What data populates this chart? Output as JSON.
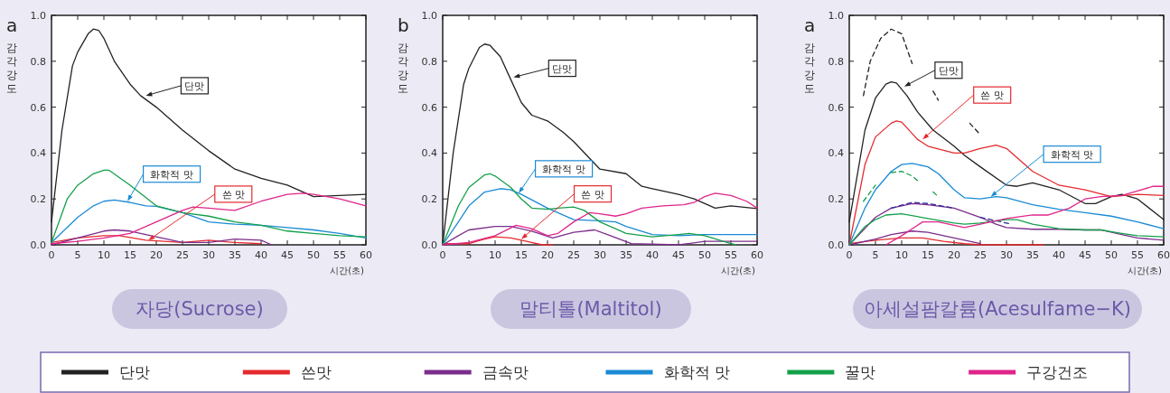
{
  "chart_data": [
    {
      "type": "line",
      "title": "자당(Sucrose)",
      "xlabel": "시간(초)",
      "ylabel": "감각강도",
      "xlim": [
        0,
        60
      ],
      "ylim": [
        0,
        1
      ],
      "xticks": [
        0,
        5,
        10,
        15,
        20,
        25,
        30,
        35,
        40,
        45,
        50,
        55,
        60
      ],
      "yticks": [
        {
          "value": 0,
          "label": "0.0"
        },
        {
          "value": 0.2,
          "label": "0.2"
        },
        {
          "value": 0.4,
          "label": "0.4"
        },
        {
          "value": 0.6,
          "label": "0.6"
        },
        {
          "value": 0.8,
          "label": "0.8"
        },
        {
          "value": 1,
          "label": "1.0"
        }
      ],
      "legend": "bottom",
      "grid": false,
      "annotations": [
        "a",
        {
          "text": "단맛",
          "x": 18,
          "y": 0.65
        },
        {
          "text": "화학적 맛",
          "x": 14.5,
          "y": 0.19
        },
        {
          "text": "쓴 맛",
          "x": 18.5,
          "y": 0.02
        }
      ],
      "series": [
        {
          "name": "단맛",
          "color": "#222222",
          "x": [
            0,
            2,
            4,
            5,
            7,
            8,
            9,
            10,
            12,
            15,
            17,
            20,
            25,
            30,
            35,
            40,
            45,
            50,
            55,
            60
          ],
          "values": [
            0.1,
            0.5,
            0.78,
            0.84,
            0.92,
            0.94,
            0.935,
            0.9,
            0.8,
            0.7,
            0.65,
            0.6,
            0.5,
            0.41,
            0.33,
            0.29,
            0.26,
            0.21,
            0.215,
            0.22
          ]
        },
        {
          "name": "쓴맛",
          "color": "#e52a2e",
          "x": [
            0,
            5,
            10,
            13,
            18,
            25,
            30,
            35,
            40
          ],
          "values": [
            0.01,
            0.03,
            0.04,
            0.04,
            0.02,
            0.01,
            0.02,
            0.01,
            0.005
          ]
        },
        {
          "name": "금속맛",
          "color": "#7b2d8b",
          "x": [
            0,
            5,
            10,
            12,
            15,
            20,
            25,
            30,
            35,
            40,
            42
          ],
          "values": [
            0,
            0.03,
            0.06,
            0.065,
            0.06,
            0.035,
            0.01,
            0.01,
            0.025,
            0.02,
            0
          ]
        },
        {
          "name": "화학적 맛",
          "color": "#1a8ad4",
          "x": [
            0,
            5,
            8,
            10,
            12,
            15,
            18,
            20,
            25,
            30,
            35,
            40,
            45,
            50,
            55,
            60
          ],
          "values": [
            0.01,
            0.12,
            0.17,
            0.19,
            0.195,
            0.185,
            0.17,
            0.168,
            0.14,
            0.1,
            0.09,
            0.085,
            0.075,
            0.065,
            0.05,
            0.03
          ]
        },
        {
          "name": "꿀맛",
          "color": "#14a04a",
          "x": [
            0,
            3,
            5,
            8,
            10,
            11,
            15,
            20,
            25,
            30,
            35,
            40,
            45,
            50,
            55,
            60
          ],
          "values": [
            0.01,
            0.2,
            0.26,
            0.31,
            0.325,
            0.325,
            0.26,
            0.17,
            0.14,
            0.125,
            0.1,
            0.085,
            0.06,
            0.05,
            0.04,
            0.035
          ]
        },
        {
          "name": "구강건조",
          "color": "#e0258a",
          "x": [
            0,
            5,
            10,
            15,
            20,
            25,
            27,
            30,
            35,
            40,
            45,
            48,
            50,
            55,
            60
          ],
          "values": [
            0.005,
            0.015,
            0.03,
            0.05,
            0.1,
            0.15,
            0.165,
            0.16,
            0.15,
            0.19,
            0.22,
            0.225,
            0.22,
            0.2,
            0.17
          ]
        }
      ]
    },
    {
      "type": "line",
      "title": "말티톨(Maltitol)",
      "xlabel": "시간(초)",
      "ylabel": "감각강도",
      "xlim": [
        0,
        60
      ],
      "ylim": [
        0,
        1
      ],
      "xticks": [
        0,
        5,
        10,
        15,
        20,
        25,
        30,
        35,
        40,
        45,
        50,
        55,
        60
      ],
      "yticks": [
        {
          "value": 0,
          "label": "0.0"
        },
        {
          "value": 0.2,
          "label": "0.2"
        },
        {
          "value": 0.4,
          "label": "0.4"
        },
        {
          "value": 0.6,
          "label": "0.6"
        },
        {
          "value": 0.8,
          "label": "0.8"
        },
        {
          "value": 1,
          "label": "1.0"
        }
      ],
      "grid": false,
      "annotations": [
        "b",
        {
          "text": "단맛",
          "x": 13.5,
          "y": 0.73
        },
        {
          "text": "화학적 맛",
          "x": 14.5,
          "y": 0.225
        },
        {
          "text": "쓴 맛",
          "x": 15,
          "y": 0.025
        }
      ],
      "series": [
        {
          "color": "#222222",
          "x": [
            0,
            2,
            4,
            5,
            7,
            8,
            9,
            11,
            13,
            15,
            17,
            20,
            23,
            25,
            30,
            35,
            38,
            40,
            45,
            48,
            52,
            55,
            60
          ],
          "values": [
            0,
            0.4,
            0.7,
            0.77,
            0.86,
            0.875,
            0.87,
            0.82,
            0.72,
            0.62,
            0.565,
            0.54,
            0.49,
            0.45,
            0.33,
            0.31,
            0.255,
            0.245,
            0.22,
            0.2,
            0.16,
            0.17,
            0.158
          ]
        },
        {
          "color": "#e52a2e",
          "x": [
            0,
            5,
            8,
            10,
            13,
            16,
            19,
            21
          ],
          "values": [
            0.005,
            0.005,
            0.025,
            0.035,
            0.03,
            0.015,
            0,
            0
          ]
        },
        {
          "color": "#7b2d8b",
          "x": [
            0,
            3,
            5,
            10,
            13,
            17,
            21,
            25,
            29,
            32,
            36,
            45,
            50,
            60
          ],
          "values": [
            0,
            0.04,
            0.065,
            0.08,
            0.08,
            0.06,
            0.03,
            0.055,
            0.065,
            0.04,
            0.005,
            0,
            0.015,
            0.015
          ]
        },
        {
          "color": "#1a8ad4",
          "x": [
            0,
            3,
            5,
            8,
            11,
            13,
            15,
            20,
            25,
            30,
            33,
            35,
            40,
            45,
            50,
            55,
            60
          ],
          "values": [
            0,
            0.1,
            0.17,
            0.23,
            0.245,
            0.24,
            0.22,
            0.16,
            0.11,
            0.105,
            0.1,
            0.08,
            0.045,
            0.04,
            0.045,
            0.045,
            0.045
          ]
        },
        {
          "color": "#14a04a",
          "x": [
            0,
            3,
            5,
            8,
            9,
            10,
            13,
            15,
            17,
            20,
            22,
            25,
            27,
            30,
            35,
            40,
            45,
            47,
            50,
            55,
            56
          ],
          "values": [
            0,
            0.17,
            0.25,
            0.305,
            0.31,
            0.3,
            0.25,
            0.2,
            0.16,
            0.155,
            0.16,
            0.165,
            0.15,
            0.1,
            0.05,
            0.035,
            0.045,
            0.05,
            0.04,
            0.005,
            0
          ]
        },
        {
          "color": "#e0258a",
          "x": [
            0,
            5,
            10,
            14,
            17,
            20,
            22,
            25,
            28,
            30,
            33,
            35,
            38,
            42,
            46,
            48,
            50,
            52,
            55,
            58,
            60
          ],
          "values": [
            0,
            0.01,
            0.04,
            0.085,
            0.07,
            0.04,
            0.05,
            0.1,
            0.14,
            0.135,
            0.125,
            0.135,
            0.16,
            0.17,
            0.175,
            0.185,
            0.21,
            0.225,
            0.215,
            0.19,
            0.16
          ]
        }
      ]
    },
    {
      "type": "line",
      "title": "아세설팜칼륨(Acesulfame−K)",
      "xlabel": "시간(초)",
      "ylabel": "감각강도",
      "xlim": [
        0,
        60
      ],
      "ylim": [
        0,
        1
      ],
      "xticks": [
        0,
        5,
        10,
        15,
        20,
        25,
        30,
        35,
        40,
        45,
        50,
        55,
        60
      ],
      "yticks": [
        {
          "value": 0,
          "label": "0.0"
        },
        {
          "value": 0.2,
          "label": "0.2"
        },
        {
          "value": 0.4,
          "label": "0.4"
        },
        {
          "value": 0.6,
          "label": "0.6"
        },
        {
          "value": 0.8,
          "label": "0.8"
        },
        {
          "value": 1,
          "label": "1.0"
        }
      ],
      "grid": false,
      "annotations": [
        "a",
        {
          "text": "단맛",
          "x": 10.5,
          "y": 0.69
        },
        {
          "text": "쓴 맛",
          "x": 14,
          "y": 0.46
        },
        {
          "text": "화학적 맛",
          "x": 27,
          "y": 0.21
        }
      ],
      "series": [
        {
          "color": "#222222",
          "x": [
            0,
            3,
            5,
            7,
            8,
            9,
            11,
            13,
            16,
            20,
            22,
            25,
            30,
            32,
            35,
            40,
            45,
            47,
            50,
            52,
            55,
            60
          ],
          "values": [
            0.1,
            0.5,
            0.64,
            0.7,
            0.71,
            0.705,
            0.65,
            0.58,
            0.5,
            0.43,
            0.39,
            0.34,
            0.26,
            0.255,
            0.27,
            0.24,
            0.18,
            0.18,
            0.21,
            0.22,
            0.2,
            0.11
          ]
        },
        {
          "color": "#222222",
          "line_style": "dashed",
          "x": [
            2.7,
            4,
            6,
            8,
            10,
            12,
            null,
            16,
            17,
            null,
            23,
            25
          ],
          "values": [
            0.65,
            0.8,
            0.9,
            0.94,
            0.92,
            0.79,
            null,
            0.67,
            0.63,
            null,
            0.53,
            0.48
          ]
        },
        {
          "color": "#e52a2e",
          "x": [
            0,
            3,
            5,
            8,
            9,
            10,
            13,
            15,
            20,
            22,
            25,
            28,
            30,
            35,
            40,
            45,
            50,
            55,
            60
          ],
          "values": [
            0,
            0.35,
            0.47,
            0.53,
            0.54,
            0.535,
            0.46,
            0.43,
            0.4,
            0.4,
            0.42,
            0.435,
            0.42,
            0.32,
            0.26,
            0.24,
            0.21,
            0.22,
            0.215
          ]
        },
        {
          "color": "#e52a2e",
          "x": [
            0,
            5,
            10,
            14,
            18,
            22,
            25,
            37
          ],
          "values": [
            0.005,
            0.02,
            0.03,
            0.03,
            0.015,
            0.005,
            0,
            0
          ]
        },
        {
          "color": "#7b2d8b",
          "x": [
            0,
            5,
            8,
            12,
            15,
            20,
            25,
            28,
            30,
            35,
            40,
            45,
            48,
            52,
            55,
            60
          ],
          "values": [
            0,
            0.12,
            0.16,
            0.18,
            0.175,
            0.16,
            0.12,
            0.09,
            0.075,
            0.068,
            0.068,
            0.065,
            0.065,
            0.045,
            0.03,
            0.02
          ]
        },
        {
          "color": "#7b2d8b",
          "x": [
            0,
            5,
            8,
            12,
            15,
            20,
            25
          ],
          "values": [
            0,
            0.025,
            0.045,
            0.06,
            0.055,
            0.03,
            0.005
          ]
        },
        {
          "color": "#2a2a9a",
          "line_style": "dashed",
          "x": [
            8,
            12,
            15,
            20,
            null,
            25,
            31
          ],
          "values": [
            0.16,
            0.185,
            0.18,
            0.16,
            null,
            0.12,
            0.09
          ]
        },
        {
          "color": "#1a8ad4",
          "x": [
            0,
            3,
            5,
            8,
            10,
            12,
            15,
            17,
            20,
            22,
            25,
            28,
            30,
            35,
            40,
            45,
            50,
            55,
            60
          ],
          "values": [
            0,
            0.16,
            0.24,
            0.32,
            0.35,
            0.355,
            0.34,
            0.31,
            0.24,
            0.205,
            0.2,
            0.21,
            0.205,
            0.175,
            0.155,
            0.14,
            0.125,
            0.1,
            0.07
          ]
        },
        {
          "color": "#14a04a",
          "x": [
            0,
            3,
            5,
            7,
            10,
            15,
            20,
            22,
            25,
            30,
            32,
            35,
            40,
            45,
            48,
            52,
            55,
            60
          ],
          "values": [
            0,
            0.08,
            0.11,
            0.13,
            0.135,
            0.115,
            0.095,
            0.09,
            0.095,
            0.11,
            0.11,
            0.09,
            0.07,
            0.065,
            0.065,
            0.05,
            0.04,
            0.035
          ]
        },
        {
          "color": "#14a04a",
          "line_style": "dashed",
          "x": [
            2.7,
            5,
            null,
            8,
            10,
            12,
            13,
            null,
            16,
            17
          ],
          "values": [
            0.19,
            0.26,
            null,
            0.315,
            0.32,
            0.3,
            0.28,
            null,
            0.23,
            0.21
          ]
        },
        {
          "color": "#e0258a",
          "x": [
            7,
            10,
            14,
            17,
            22,
            25,
            30,
            35,
            38,
            42,
            45,
            48,
            52,
            55,
            58,
            60
          ],
          "values": [
            0,
            0.04,
            0.1,
            0.1,
            0.075,
            0.09,
            0.115,
            0.13,
            0.13,
            0.16,
            0.2,
            0.21,
            0.215,
            0.235,
            0.255,
            0.255
          ]
        }
      ]
    }
  ]
}
